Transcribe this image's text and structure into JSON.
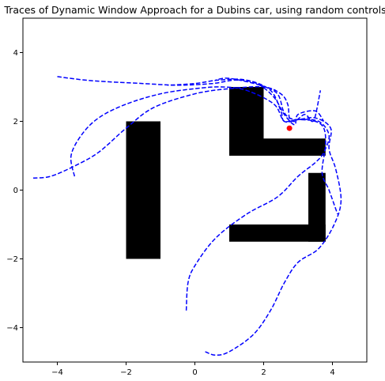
{
  "chart_data": {
    "type": "line",
    "title": "Traces of Dynamic Window Approach for a Dubins car, using random controls",
    "xlabel": "",
    "ylabel": "",
    "xlim": [
      -5,
      5
    ],
    "ylim": [
      -5,
      5
    ],
    "x_ticks": [
      -4,
      -2,
      0,
      2,
      4
    ],
    "y_ticks": [
      -4,
      -2,
      0,
      2,
      4
    ],
    "x_tick_labels": [
      "−4",
      "−2",
      "0",
      "2",
      "4"
    ],
    "y_tick_labels": [
      "−4",
      "−2",
      "0",
      "2",
      "4"
    ],
    "grid": false,
    "obstacle_color": "#000000",
    "trace_color": "#0000ff",
    "goal_color": "#ff0000",
    "obstacles": [
      {
        "x": -2.0,
        "y": -2.0,
        "width": 1.0,
        "height": 4.0
      },
      {
        "x": 1.0,
        "y": 1.0,
        "width": 1.0,
        "height": 2.0
      },
      {
        "x": 1.0,
        "y": 1.0,
        "width": 2.8,
        "height": 0.5
      },
      {
        "x": 1.0,
        "y": -1.5,
        "width": 2.8,
        "height": 0.5
      },
      {
        "x": 3.3,
        "y": -1.5,
        "width": 0.5,
        "height": 2.0
      }
    ],
    "goal": {
      "x": 2.75,
      "y": 1.8
    },
    "series": [
      {
        "points": [
          [
            -4.0,
            3.3
          ],
          [
            -3.2,
            3.2
          ],
          [
            -2.5,
            3.15
          ],
          [
            -1.5,
            3.1
          ],
          [
            -0.5,
            3.05
          ],
          [
            0.5,
            3.1
          ],
          [
            1.2,
            3.2
          ],
          [
            1.8,
            3.1
          ],
          [
            2.3,
            2.7
          ],
          [
            2.6,
            2.2
          ],
          [
            2.9,
            1.9
          ],
          [
            3.0,
            2.2
          ],
          [
            3.5,
            2.3
          ],
          [
            3.75,
            2.0
          ]
        ]
      },
      {
        "points": [
          [
            -3.5,
            0.4
          ],
          [
            -3.6,
            1.0
          ],
          [
            -3.3,
            1.6
          ],
          [
            -2.8,
            2.1
          ],
          [
            -2.0,
            2.5
          ],
          [
            -1.0,
            2.8
          ],
          [
            0.0,
            2.95
          ],
          [
            0.8,
            3.0
          ],
          [
            1.5,
            2.9
          ],
          [
            2.3,
            2.5
          ],
          [
            2.6,
            2.0
          ],
          [
            3.0,
            2.05
          ],
          [
            3.5,
            2.0
          ],
          [
            3.75,
            1.8
          ],
          [
            3.8,
            1.3
          ],
          [
            3.7,
            0.5
          ],
          [
            3.9,
            0.0
          ],
          [
            4.15,
            -0.7
          ]
        ]
      },
      {
        "points": [
          [
            -4.7,
            0.35
          ],
          [
            -4.2,
            0.4
          ],
          [
            -3.5,
            0.7
          ],
          [
            -2.8,
            1.1
          ],
          [
            -2.0,
            1.8
          ],
          [
            -1.2,
            2.4
          ],
          [
            0.0,
            2.8
          ],
          [
            1.0,
            2.95
          ],
          [
            2.0,
            3.0
          ],
          [
            2.5,
            2.8
          ],
          [
            2.7,
            2.5
          ],
          [
            2.75,
            2.1
          ],
          [
            2.9,
            2.0
          ],
          [
            3.2,
            2.2
          ],
          [
            3.4,
            2.0
          ],
          [
            3.5,
            2.15
          ],
          [
            3.65,
            2.9
          ]
        ]
      },
      {
        "points": [
          [
            -0.25,
            -3.5
          ],
          [
            -0.2,
            -2.7
          ],
          [
            0.0,
            -2.2
          ],
          [
            0.6,
            -1.4
          ],
          [
            1.5,
            -0.7
          ],
          [
            2.4,
            -0.2
          ],
          [
            3.0,
            0.4
          ],
          [
            3.5,
            0.8
          ],
          [
            3.75,
            1.1
          ],
          [
            3.9,
            1.6
          ],
          [
            3.6,
            2.0
          ],
          [
            3.0,
            2.05
          ],
          [
            2.6,
            2.0
          ],
          [
            2.5,
            2.3
          ],
          [
            2.2,
            2.9
          ],
          [
            1.5,
            3.2
          ],
          [
            0.7,
            3.2
          ],
          [
            0.0,
            3.1
          ],
          [
            -0.8,
            3.05
          ]
        ]
      },
      {
        "points": [
          [
            0.3,
            -4.7
          ],
          [
            0.6,
            -4.8
          ],
          [
            1.0,
            -4.7
          ],
          [
            1.7,
            -4.2
          ],
          [
            2.2,
            -3.5
          ],
          [
            2.6,
            -2.7
          ],
          [
            3.0,
            -2.1
          ],
          [
            3.6,
            -1.7
          ],
          [
            4.05,
            -1.0
          ],
          [
            4.25,
            -0.3
          ],
          [
            4.1,
            0.6
          ],
          [
            3.9,
            1.2
          ],
          [
            3.95,
            1.8
          ],
          [
            3.5,
            2.1
          ],
          [
            2.9,
            2.05
          ],
          [
            2.6,
            2.25
          ],
          [
            2.4,
            2.8
          ],
          [
            1.9,
            3.05
          ],
          [
            1.0,
            3.25
          ],
          [
            0.6,
            3.2
          ]
        ]
      }
    ]
  }
}
